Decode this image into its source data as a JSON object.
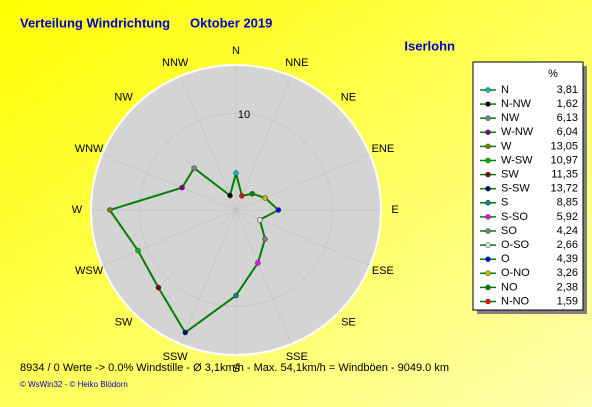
{
  "chart_data": {
    "type": "radar",
    "title": "Verteilung Windrichtung",
    "subtitle": "Oktober 2019",
    "location": "Iserlohn",
    "categories": [
      "N",
      "NNE",
      "NE",
      "ENE",
      "E",
      "ESE",
      "SE",
      "SSE",
      "S",
      "SSW",
      "SW",
      "WSW",
      "W",
      "WNW",
      "NW",
      "NNW"
    ],
    "rlim": [
      0,
      15
    ],
    "rticks": [
      10
    ],
    "line_color": "#008000",
    "legend_title": "%",
    "series": [
      {
        "name": "N",
        "color": "#00c0c0",
        "value": 3.81,
        "value_label": "3,81"
      },
      {
        "name": "N-NW",
        "color": "#000000",
        "value": 1.62,
        "value_label": "1,62"
      },
      {
        "name": "NW",
        "color": "#808080",
        "value": 6.13,
        "value_label": "6,13"
      },
      {
        "name": "W-NW",
        "color": "#800080",
        "value": 6.04,
        "value_label": "6,04"
      },
      {
        "name": "W",
        "color": "#808000",
        "value": 13.05,
        "value_label": "13,05"
      },
      {
        "name": "W-SW",
        "color": "#00c000",
        "value": 10.97,
        "value_label": "10,97"
      },
      {
        "name": "SW",
        "color": "#800000",
        "value": 11.35,
        "value_label": "11,35"
      },
      {
        "name": "S-SW",
        "color": "#000080",
        "value": 13.72,
        "value_label": "13,72"
      },
      {
        "name": "S",
        "color": "#008080",
        "value": 8.85,
        "value_label": "8,85"
      },
      {
        "name": "S-SO",
        "color": "#ff00ff",
        "value": 5.92,
        "value_label": "5,92"
      },
      {
        "name": "SO",
        "color": "#808080",
        "value": 4.24,
        "value_label": "4,24"
      },
      {
        "name": "O-SO",
        "color": "#e0e0e0",
        "value": 2.66,
        "value_label": "2,66"
      },
      {
        "name": "O",
        "color": "#0000ff",
        "value": 4.39,
        "value_label": "4,39"
      },
      {
        "name": "O-NO",
        "color": "#c0c000",
        "value": 3.26,
        "value_label": "3,26"
      },
      {
        "name": "NO",
        "color": "#008000",
        "value": 2.38,
        "value_label": "2,38"
      },
      {
        "name": "N-NO",
        "color": "#ff0000",
        "value": 1.59,
        "value_label": "1,59"
      }
    ],
    "footer": "8934 / 0 Werte  -> 0.0% Windstille   -   Ø 3,1km/h  -  Max. 54,1km/h = Windböen   -   9049.0 km",
    "credits": "© WsWin32  -  © Heiko Blödorn"
  }
}
